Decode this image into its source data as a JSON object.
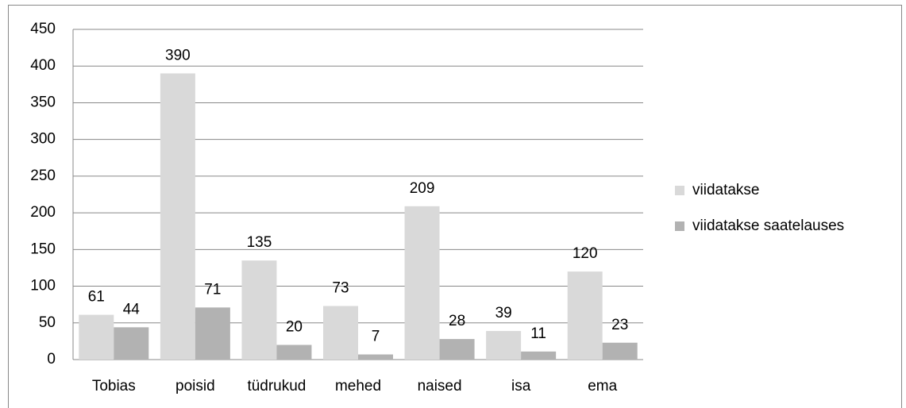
{
  "chart_data": {
    "type": "bar",
    "categories": [
      "Tobias",
      "poisid",
      "tüdrukud",
      "mehed",
      "naised",
      "isa",
      "ema"
    ],
    "series": [
      {
        "name": "viidatakse",
        "color": "#d9d9d9",
        "values": [
          61,
          390,
          135,
          73,
          209,
          39,
          120
        ]
      },
      {
        "name": "viidatakse saatelauses",
        "color": "#b2b2b2",
        "values": [
          44,
          71,
          20,
          7,
          28,
          11,
          23
        ]
      }
    ],
    "ylim": [
      0,
      450
    ],
    "yticks": [
      0,
      50,
      100,
      150,
      200,
      250,
      300,
      350,
      400,
      450
    ],
    "grid": true,
    "legend": "right"
  }
}
